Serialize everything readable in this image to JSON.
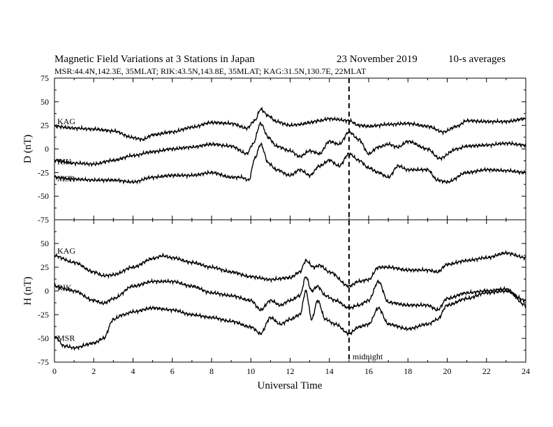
{
  "header": {
    "title": "Magnetic Field Variations at 3 Stations in Japan",
    "date": "23 November 2019",
    "averaging": "10-s averages",
    "stations_line": "MSR:44.4N,142.3E, 35MLAT;  RIK:43.5N,143.8E, 35MLAT;  KAG:31.5N,130.7E, 22MLAT"
  },
  "chart_data": [
    {
      "type": "line",
      "ylabel": "D (nT)",
      "ylim": [
        -75,
        75
      ],
      "yticks": [
        -75,
        -50,
        -25,
        0,
        25,
        50,
        75
      ],
      "xlim": [
        0,
        24
      ],
      "xticks": [
        0,
        2,
        4,
        6,
        8,
        10,
        12,
        14,
        16,
        18,
        20,
        22,
        24
      ],
      "grid": false,
      "series": [
        {
          "name": "KAG",
          "x": [
            0,
            1,
            2,
            3,
            4,
            4.5,
            5,
            6,
            7,
            8,
            9,
            9.8,
            10.2,
            10.5,
            10.9,
            11.3,
            12,
            12.5,
            13,
            13.5,
            14,
            15,
            15.5,
            16,
            17,
            18,
            19,
            19.8,
            20.5,
            21,
            22,
            23,
            24
          ],
          "y": [
            24,
            22,
            21,
            19,
            12,
            10,
            15,
            18,
            23,
            28,
            27,
            22,
            30,
            42,
            35,
            29,
            25,
            26,
            28,
            30,
            32,
            30,
            25,
            24,
            26,
            27,
            24,
            18,
            24,
            30,
            29,
            29,
            32
          ]
        },
        {
          "name": "RIK",
          "x": [
            0,
            1,
            2,
            3,
            4,
            5,
            6,
            7,
            8,
            9,
            9.8,
            10.1,
            10.5,
            10.9,
            11.3,
            12,
            12.5,
            13,
            13.5,
            14,
            14.5,
            15,
            15.5,
            16,
            16.5,
            17,
            17.5,
            18,
            19,
            19.6,
            20.5,
            21,
            22,
            23,
            24
          ],
          "y": [
            -12,
            -15,
            -16,
            -12,
            -7,
            -3,
            0,
            2,
            5,
            3,
            -5,
            5,
            27,
            12,
            3,
            -2,
            -8,
            -2,
            -5,
            8,
            5,
            18,
            10,
            -5,
            2,
            5,
            2,
            8,
            0,
            -10,
            0,
            3,
            4,
            6,
            4
          ]
        },
        {
          "name": "MSR",
          "x": [
            0,
            1,
            2,
            3,
            4,
            5,
            6,
            7,
            8,
            9,
            9.5,
            9.9,
            10.2,
            10.5,
            10.9,
            11.3,
            12,
            12.5,
            13,
            13.5,
            14,
            14.5,
            15,
            15.5,
            16,
            16.5,
            17,
            17.5,
            18,
            19,
            19.5,
            20,
            21,
            22,
            23,
            24
          ],
          "y": [
            -30,
            -32,
            -33,
            -33,
            -35,
            -30,
            -28,
            -28,
            -25,
            -30,
            -30,
            -33,
            -10,
            5,
            -15,
            -22,
            -28,
            -22,
            -28,
            -18,
            -12,
            -18,
            -5,
            -12,
            -20,
            -25,
            -30,
            -18,
            -22,
            -22,
            -33,
            -35,
            -25,
            -22,
            -23,
            -25
          ]
        }
      ]
    },
    {
      "type": "line",
      "ylabel": "H (nT)",
      "xlabel": "Universal Time",
      "ylim": [
        -75,
        75
      ],
      "yticks": [
        -75,
        -50,
        -25,
        0,
        25,
        50,
        75
      ],
      "xlim": [
        0,
        24
      ],
      "xticks": [
        0,
        2,
        4,
        6,
        8,
        10,
        12,
        14,
        16,
        18,
        20,
        22,
        24
      ],
      "grid": false,
      "annotations": [
        {
          "x": 15,
          "label": "midnight",
          "style": "dashed-vertical"
        }
      ],
      "series": [
        {
          "name": "KAG",
          "x": [
            0,
            1,
            2,
            2.5,
            3,
            4,
            5,
            5.5,
            6,
            7,
            8,
            9,
            10,
            11,
            12,
            12.5,
            12.8,
            13.2,
            13.5,
            14,
            15,
            15.5,
            16,
            16.5,
            17,
            18,
            19,
            19.5,
            20,
            21,
            22,
            23,
            24
          ],
          "y": [
            37,
            30,
            20,
            16,
            17,
            25,
            34,
            37,
            35,
            30,
            25,
            20,
            15,
            12,
            14,
            20,
            32,
            25,
            27,
            20,
            5,
            10,
            12,
            25,
            25,
            22,
            22,
            20,
            28,
            32,
            35,
            40,
            35
          ]
        },
        {
          "name": "RIK",
          "x": [
            0,
            1,
            2,
            2.5,
            3,
            4,
            5,
            6,
            7,
            8,
            9,
            10,
            10.5,
            11,
            11.5,
            12,
            12.5,
            12.8,
            13.1,
            13.4,
            13.8,
            14.3,
            15,
            15.5,
            16,
            16.5,
            17,
            18,
            19,
            19.5,
            20,
            21,
            22,
            23,
            24
          ],
          "y": [
            5,
            0,
            -10,
            -13,
            -8,
            5,
            10,
            10,
            5,
            -2,
            -5,
            -10,
            -20,
            -10,
            -15,
            -10,
            -5,
            15,
            0,
            5,
            -5,
            -10,
            -18,
            -15,
            -10,
            10,
            -12,
            -15,
            -15,
            -20,
            -8,
            -2,
            0,
            2,
            -15
          ]
        },
        {
          "name": "MSR",
          "x": [
            0,
            0.5,
            1,
            2,
            2.5,
            3,
            3.5,
            4,
            5,
            6,
            7,
            8,
            9,
            10,
            10.5,
            11,
            11.5,
            12,
            12.5,
            12.8,
            13.1,
            13.4,
            13.8,
            14.3,
            15,
            15.5,
            16,
            16.5,
            17,
            18,
            19,
            19.5,
            20,
            21,
            22,
            23,
            24
          ],
          "y": [
            -48,
            -58,
            -60,
            -55,
            -50,
            -30,
            -25,
            -22,
            -18,
            -20,
            -25,
            -28,
            -32,
            -38,
            -45,
            -28,
            -35,
            -30,
            -25,
            0,
            -30,
            -10,
            -30,
            -35,
            -45,
            -38,
            -35,
            -18,
            -35,
            -40,
            -35,
            -30,
            -15,
            -8,
            -2,
            0,
            -10
          ]
        }
      ]
    }
  ]
}
